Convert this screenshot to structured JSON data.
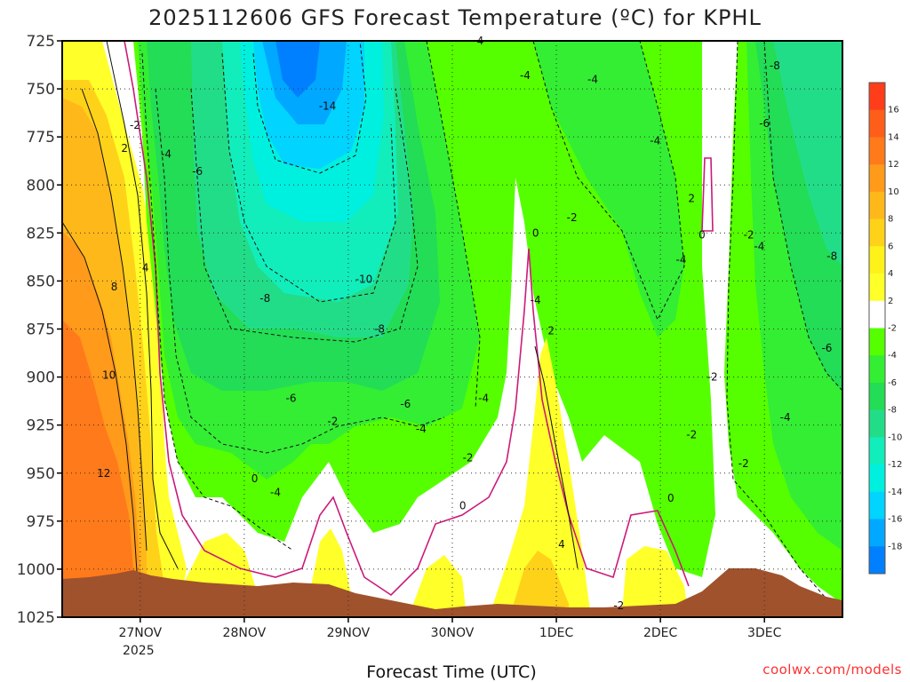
{
  "chart_data": {
    "type": "heatmap",
    "title": "2025112606 GFS Forecast Temperature (ºC) for KPHL",
    "xlabel": "Forecast Time (UTC)",
    "ylabel": "",
    "x_ticks": [
      "27NOV",
      "28NOV",
      "29NOV",
      "30NOV",
      "1DEC",
      "2DEC",
      "3DEC"
    ],
    "x_subtick": "2025",
    "y_ticks": [
      725,
      750,
      775,
      800,
      825,
      850,
      875,
      900,
      925,
      950,
      975,
      1000,
      1025
    ],
    "ylim": [
      725,
      1025
    ],
    "xlim_days": [
      -0.75,
      6.75
    ],
    "grid": true,
    "colorbar_labels": [
      "16",
      "14",
      "12",
      "10",
      "8",
      "6",
      "4",
      "2",
      "-2",
      "-4",
      "-6",
      "-8",
      "-10",
      "-12",
      "-14",
      "-16",
      "-18"
    ],
    "colorbar_colors": [
      "#ff3d1a",
      "#ff5e1a",
      "#ff7a1a",
      "#ff9a1a",
      "#ffb81a",
      "#ffd21a",
      "#fff21a",
      "#ffff2a",
      "#ffffff",
      "#55ff00",
      "#33ee33",
      "#22dd55",
      "#22dd88",
      "#11eebb",
      "#00f0e0",
      "#00d4ff",
      "#00a8ff",
      "#0080ff"
    ],
    "color_scale": [
      {
        "t": -18,
        "color": "#0080ff"
      },
      {
        "t": -16,
        "color": "#00a8ff"
      },
      {
        "t": -14,
        "color": "#00d4ff"
      },
      {
        "t": -12,
        "color": "#00f0e0"
      },
      {
        "t": -10,
        "color": "#11eebb"
      },
      {
        "t": -8,
        "color": "#22dd88"
      },
      {
        "t": -6,
        "color": "#22dd55"
      },
      {
        "t": -4,
        "color": "#33ee33"
      },
      {
        "t": -2,
        "color": "#55ff00"
      },
      {
        "t": 2,
        "color": "#ffffff"
      },
      {
        "t": 4,
        "color": "#ffff2a"
      },
      {
        "t": 6,
        "color": "#fff21a"
      },
      {
        "t": 8,
        "color": "#ffd21a"
      },
      {
        "t": 10,
        "color": "#ffb81a"
      },
      {
        "t": 12,
        "color": "#ff9a1a"
      },
      {
        "t": 14,
        "color": "#ff7a1a"
      },
      {
        "t": 16,
        "color": "#ff5e1a"
      },
      {
        "t": 18,
        "color": "#ff3d1a"
      }
    ],
    "contour_labels": [
      {
        "text": "-2",
        "day": -0.05,
        "p": 769
      },
      {
        "text": "2",
        "day": -0.15,
        "p": 781
      },
      {
        "text": "-4",
        "day": 0.25,
        "p": 784
      },
      {
        "text": "-6",
        "day": 0.55,
        "p": 793
      },
      {
        "text": "4",
        "day": 0.05,
        "p": 843
      },
      {
        "text": "8",
        "day": -0.25,
        "p": 853
      },
      {
        "text": "10",
        "day": -0.3,
        "p": 899
      },
      {
        "text": "12",
        "day": -0.35,
        "p": 950
      },
      {
        "text": "-14",
        "day": 1.8,
        "p": 759
      },
      {
        "text": "-8",
        "day": 1.2,
        "p": 859
      },
      {
        "text": "-10",
        "day": 2.15,
        "p": 849
      },
      {
        "text": "-8",
        "day": 2.3,
        "p": 875
      },
      {
        "text": "-6",
        "day": 1.45,
        "p": 911
      },
      {
        "text": "-6",
        "day": 2.55,
        "p": 914
      },
      {
        "text": "-2",
        "day": 1.85,
        "p": 923
      },
      {
        "text": "0",
        "day": 1.1,
        "p": 953
      },
      {
        "text": "-4",
        "day": 1.3,
        "p": 960
      },
      {
        "text": "-4",
        "day": 2.7,
        "p": 927
      },
      {
        "text": "-4",
        "day": 3.3,
        "p": 911
      },
      {
        "text": "-2",
        "day": 3.15,
        "p": 942
      },
      {
        "text": "0",
        "day": 3.1,
        "p": 967
      },
      {
        "text": "-4",
        "day": 3.25,
        "p": 725
      },
      {
        "text": "-4",
        "day": 3.7,
        "p": 743
      },
      {
        "text": "-4",
        "day": 4.35,
        "p": 745
      },
      {
        "text": "-2",
        "day": 4.15,
        "p": 817
      },
      {
        "text": "0",
        "day": 3.8,
        "p": 825
      },
      {
        "text": "-4",
        "day": 3.8,
        "p": 860
      },
      {
        "text": "2",
        "day": 3.95,
        "p": 876
      },
      {
        "text": "4",
        "day": 4.05,
        "p": 987
      },
      {
        "text": "-4",
        "day": 4.95,
        "p": 777
      },
      {
        "text": "2",
        "day": 5.3,
        "p": 807
      },
      {
        "text": "0",
        "day": 5.4,
        "p": 826
      },
      {
        "text": "-4",
        "day": 5.2,
        "p": 839
      },
      {
        "text": "-2",
        "day": 5.5,
        "p": 900
      },
      {
        "text": "-2",
        "day": 5.3,
        "p": 930
      },
      {
        "text": "0",
        "day": 5.1,
        "p": 963
      },
      {
        "text": "-2",
        "day": 4.6,
        "p": 1019
      },
      {
        "text": "-8",
        "day": 6.1,
        "p": 738
      },
      {
        "text": "-6",
        "day": 6.0,
        "p": 768
      },
      {
        "text": "-2",
        "day": 5.85,
        "p": 826
      },
      {
        "text": "-4",
        "day": 5.95,
        "p": 832
      },
      {
        "text": "-8",
        "day": 6.65,
        "p": 837
      },
      {
        "text": "-6",
        "day": 6.6,
        "p": 885
      },
      {
        "text": "-4",
        "day": 6.2,
        "p": 921
      },
      {
        "text": "-2",
        "day": 5.8,
        "p": 945
      }
    ]
  },
  "credit": "coolwx.com/models",
  "colors": {
    "terrain": "#a0522d",
    "freezing_line": "#cc1a7a",
    "contour": "#111111",
    "grid": "#333333"
  }
}
